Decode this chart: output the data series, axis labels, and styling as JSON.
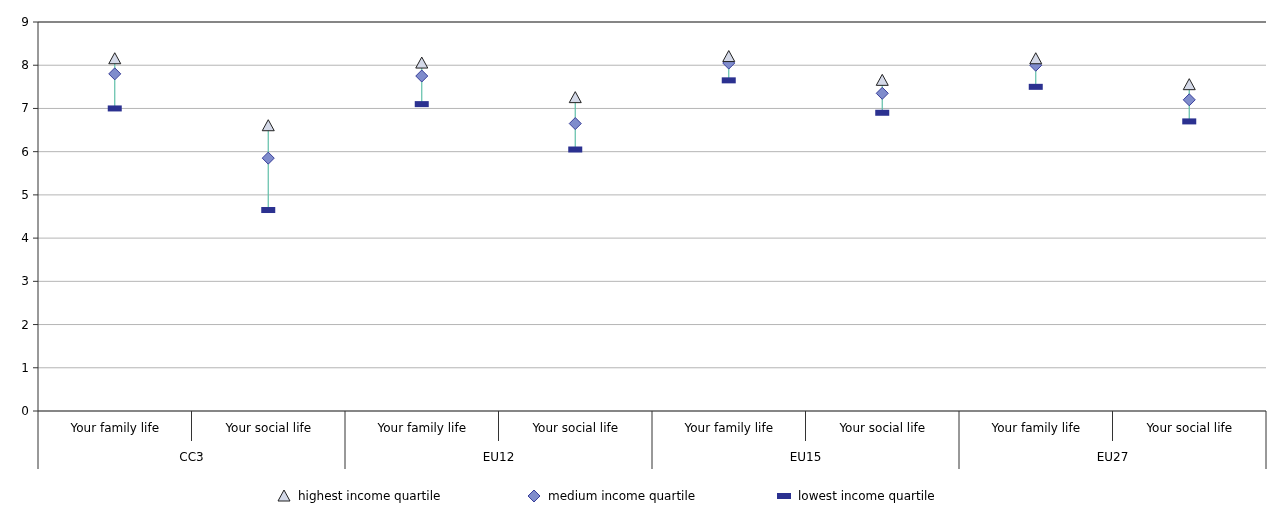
{
  "chart_data": {
    "type": "scatter",
    "categories": [
      "Your family life",
      "Your social life",
      "Your family life",
      "Your social life",
      "Your family life",
      "Your social life",
      "Your family life",
      "Your social life"
    ],
    "annotations": [
      "CC3",
      "EU12",
      "EU15",
      "EU27"
    ],
    "series": [
      {
        "name": "highest income quartile",
        "color": "#d4d9e8",
        "marker": "triangle",
        "values": [
          8.15,
          6.6,
          8.05,
          7.25,
          8.2,
          7.65,
          8.15,
          7.55
        ]
      },
      {
        "name": "medium income quartile",
        "color": "#7f8ccc",
        "marker": "diamond",
        "values": [
          7.8,
          5.85,
          7.75,
          6.65,
          8.05,
          7.35,
          8.0,
          7.2
        ]
      },
      {
        "name": "lowest income quartile",
        "color": "#2b3190",
        "marker": "square",
        "values": [
          7.0,
          4.65,
          7.1,
          6.05,
          7.65,
          6.9,
          7.5,
          6.7
        ]
      }
    ],
    "ylim": [
      0,
      9
    ],
    "yticks": [
      0,
      1,
      2,
      3,
      4,
      5,
      6,
      7,
      8,
      9
    ],
    "grid": "y",
    "legend": "bottom"
  }
}
